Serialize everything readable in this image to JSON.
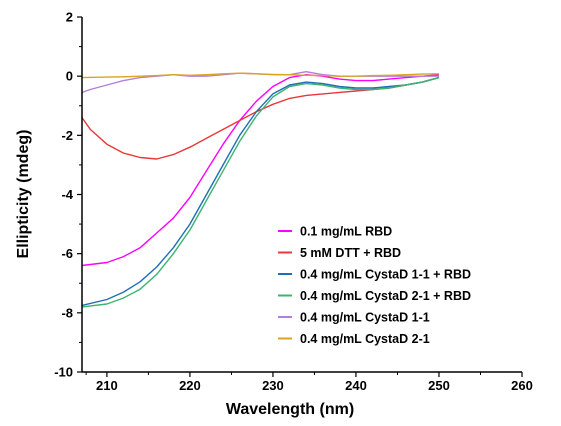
{
  "chart_data": {
    "type": "line",
    "title": "",
    "xlabel": "Wavelength (nm)",
    "ylabel": "Ellipticity (mdeg)",
    "xlim": [
      207,
      260
    ],
    "ylim": [
      -10,
      2
    ],
    "x_ticks": [
      210,
      220,
      230,
      240,
      250,
      260
    ],
    "y_ticks": [
      2,
      0,
      -2,
      -4,
      -6,
      -8,
      -10
    ],
    "legend_position": "lower-center",
    "grid": false,
    "series": [
      {
        "name": "0.1 mg/mL RBD",
        "color": "#ff00ff",
        "x": [
          207,
          210,
          212,
          214,
          216,
          218,
          220,
          222,
          224,
          226,
          228,
          230,
          232,
          234,
          236,
          238,
          240,
          242,
          244,
          246,
          248,
          250
        ],
        "y": [
          -6.4,
          -6.3,
          -6.1,
          -5.8,
          -5.3,
          -4.8,
          -4.1,
          -3.2,
          -2.3,
          -1.5,
          -0.85,
          -0.35,
          -0.05,
          0.05,
          0.0,
          -0.1,
          -0.15,
          -0.15,
          -0.1,
          -0.05,
          0.0,
          0.05
        ]
      },
      {
        "name": "5 mM DTT + RBD",
        "color": "#e8383c",
        "x": [
          207,
          208,
          210,
          212,
          214,
          216,
          218,
          220,
          222,
          224,
          226,
          228,
          230,
          232,
          234,
          236,
          238,
          240,
          242,
          244,
          246,
          248,
          250
        ],
        "y": [
          -1.4,
          -1.8,
          -2.3,
          -2.6,
          -2.75,
          -2.8,
          -2.65,
          -2.4,
          -2.1,
          -1.8,
          -1.5,
          -1.2,
          -0.95,
          -0.75,
          -0.65,
          -0.6,
          -0.55,
          -0.5,
          -0.45,
          -0.4,
          -0.3,
          -0.2,
          -0.05
        ]
      },
      {
        "name": "0.4 mg/mL CystaD 1-1 + RBD",
        "color": "#1f6fb4",
        "x": [
          207,
          210,
          212,
          214,
          216,
          218,
          220,
          222,
          224,
          226,
          228,
          230,
          232,
          234,
          236,
          238,
          240,
          242,
          244,
          246,
          248,
          250
        ],
        "y": [
          -7.75,
          -7.55,
          -7.3,
          -6.95,
          -6.45,
          -5.8,
          -5.0,
          -4.0,
          -3.0,
          -2.0,
          -1.2,
          -0.6,
          -0.3,
          -0.2,
          -0.25,
          -0.35,
          -0.4,
          -0.4,
          -0.35,
          -0.3,
          -0.2,
          -0.05
        ]
      },
      {
        "name": "0.4 mg/mL CystaD 2-1 + RBD",
        "color": "#3cb371",
        "x": [
          207,
          210,
          212,
          214,
          216,
          218,
          220,
          222,
          224,
          226,
          228,
          230,
          232,
          234,
          236,
          238,
          240,
          242,
          244,
          246,
          248,
          250
        ],
        "y": [
          -7.8,
          -7.7,
          -7.5,
          -7.2,
          -6.7,
          -6.0,
          -5.2,
          -4.2,
          -3.2,
          -2.2,
          -1.35,
          -0.7,
          -0.35,
          -0.25,
          -0.3,
          -0.4,
          -0.45,
          -0.45,
          -0.4,
          -0.3,
          -0.2,
          -0.05
        ]
      },
      {
        "name": "0.4 mg/mL CystaD 1-1",
        "color": "#b57edc",
        "x": [
          207,
          208,
          210,
          212,
          214,
          216,
          218,
          220,
          222,
          224,
          226,
          228,
          230,
          232,
          234,
          236,
          238,
          240,
          242,
          244,
          246,
          248,
          250
        ],
        "y": [
          -0.55,
          -0.45,
          -0.3,
          -0.15,
          -0.05,
          0.0,
          0.05,
          0.0,
          0.0,
          0.05,
          0.1,
          0.08,
          0.05,
          0.05,
          0.15,
          0.05,
          0.0,
          0.0,
          0.0,
          0.0,
          0.0,
          0.0,
          0.0
        ]
      },
      {
        "name": "0.4 mg/mL CystaD 2-1",
        "color": "#daa520",
        "x": [
          207,
          210,
          212,
          214,
          216,
          218,
          220,
          222,
          224,
          226,
          228,
          230,
          232,
          234,
          236,
          238,
          240,
          242,
          244,
          246,
          248,
          250
        ],
        "y": [
          -0.05,
          -0.03,
          -0.02,
          0.0,
          0.02,
          0.05,
          0.03,
          0.05,
          0.08,
          0.1,
          0.08,
          0.06,
          0.05,
          0.03,
          0.02,
          0.0,
          0.0,
          0.02,
          0.03,
          0.05,
          0.07,
          0.08
        ]
      }
    ]
  }
}
